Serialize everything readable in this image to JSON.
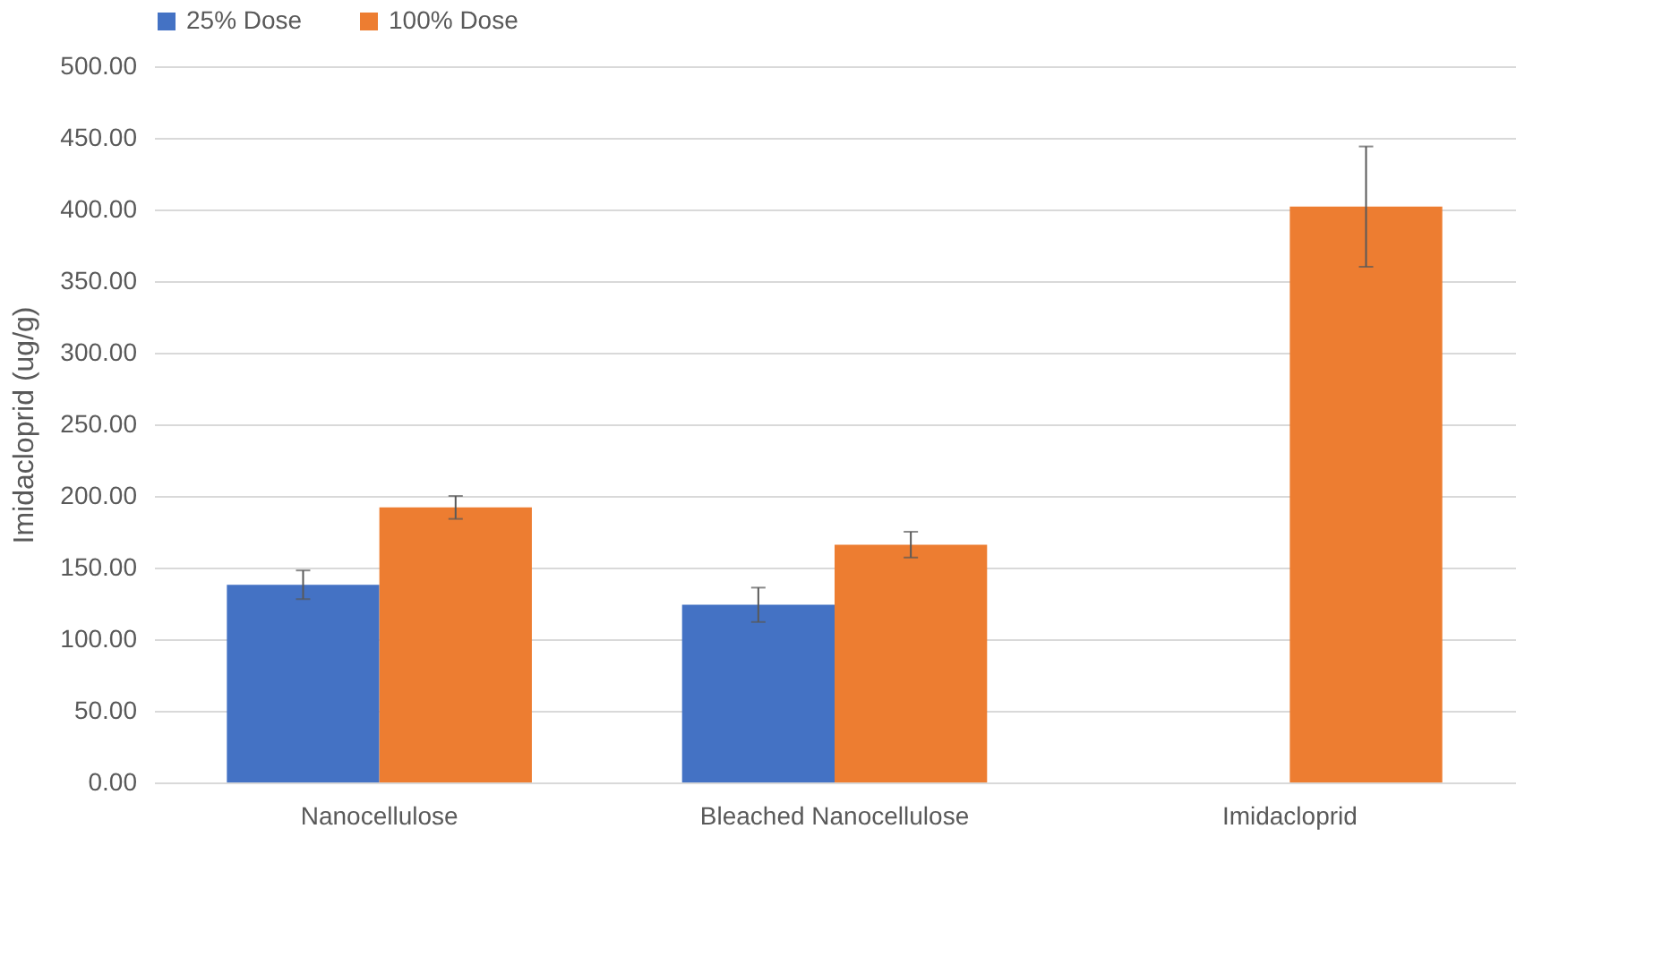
{
  "chart_data": {
    "type": "bar",
    "categories": [
      "Nanocellulose",
      "Bleached Nanocellulose",
      "Imidacloprid"
    ],
    "ylabel": "Imidacloprid (ug/g)",
    "series": [
      {
        "name": "25% Dose",
        "color": "#4472c4",
        "values": [
          138,
          124,
          null
        ],
        "errors": [
          10,
          12,
          null
        ]
      },
      {
        "name": "100% Dose",
        "color": "#ed7d31",
        "values": [
          192,
          166,
          402
        ],
        "errors": [
          8,
          9,
          42
        ]
      }
    ],
    "ylim": [
      0,
      500
    ],
    "yticks": [
      {
        "value": 0,
        "label": "0.00"
      },
      {
        "value": 50,
        "label": "50.00"
      },
      {
        "value": 100,
        "label": "100.00"
      },
      {
        "value": 150,
        "label": "150.00"
      },
      {
        "value": 200,
        "label": "200.00"
      },
      {
        "value": 250,
        "label": "250.00"
      },
      {
        "value": 300,
        "label": "300.00"
      },
      {
        "value": 350,
        "label": "350.00"
      },
      {
        "value": 400,
        "label": "400.00"
      },
      {
        "value": 450,
        "label": "450.00"
      },
      {
        "value": 500,
        "label": "500.00"
      }
    ],
    "grid": "y",
    "legend": "top"
  }
}
